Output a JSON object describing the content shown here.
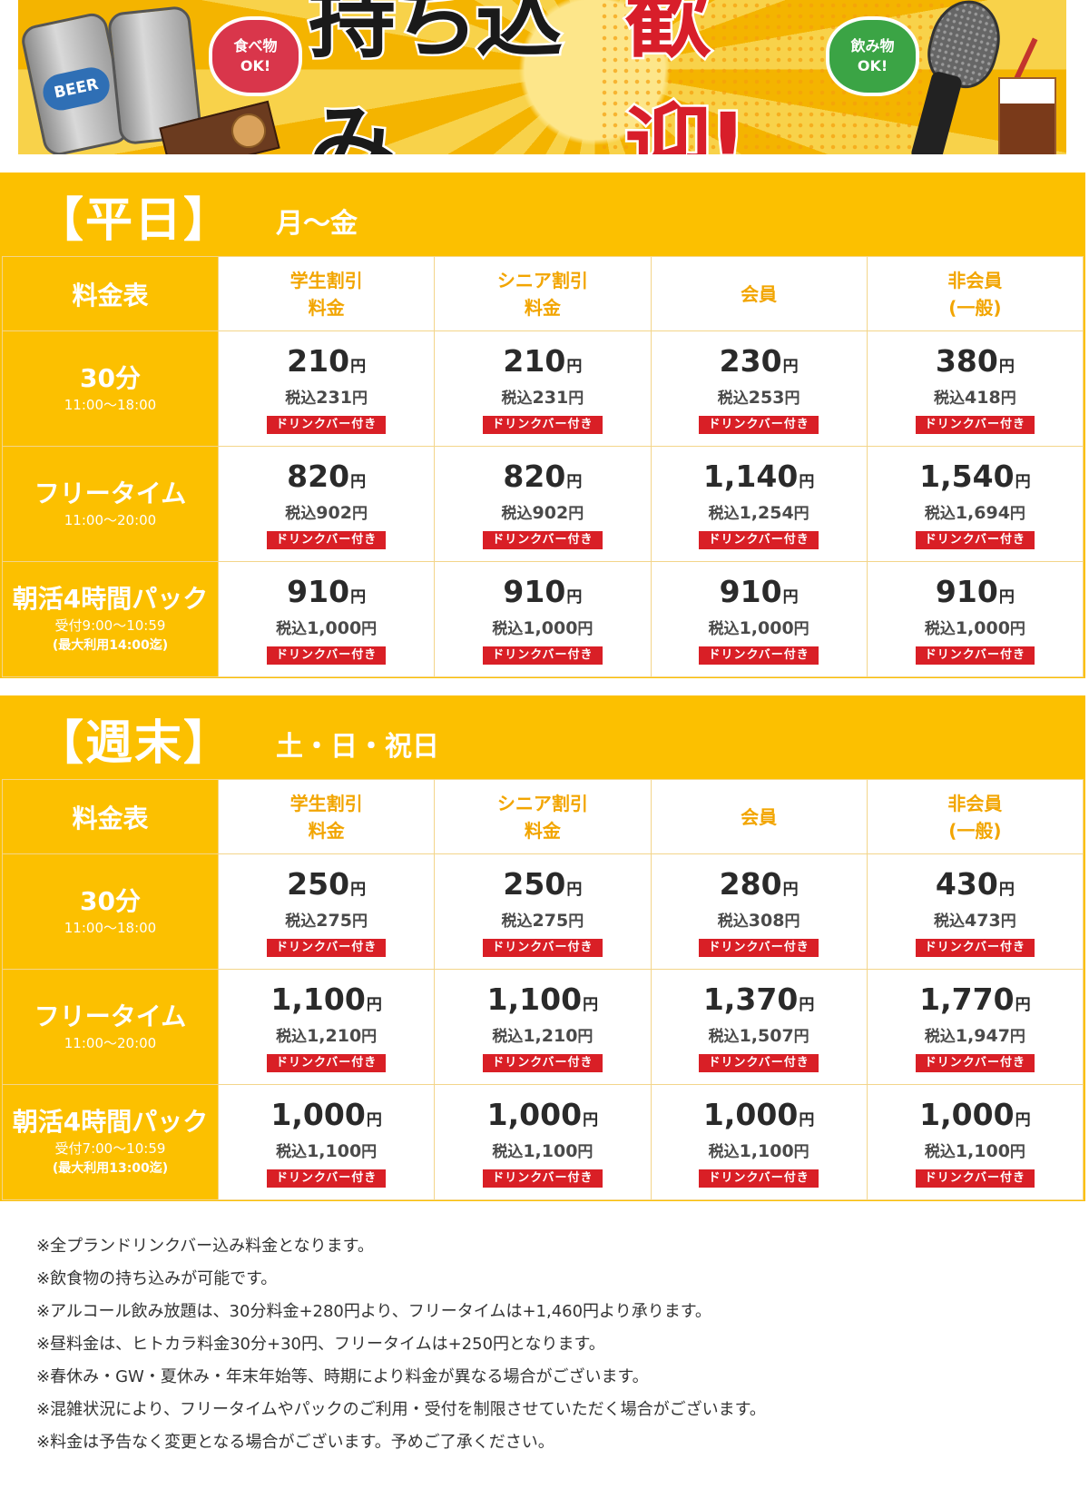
{
  "banner": {
    "headline_black": "持ち込み",
    "headline_red": "歓迎!",
    "food_bubble": [
      "食べ物",
      "OK!"
    ],
    "drink_bubble": [
      "飲み物",
      "OK!"
    ],
    "can_label": "BEER",
    "colors": {
      "background": "#f3c21a",
      "headline_red": "#d81e2a",
      "food_bubble": "#d9364b",
      "drink_bubble": "#3ba445"
    }
  },
  "weekday": {
    "title": "【平日】",
    "subtitle": "月〜金",
    "corner_label": "料金表",
    "columns": [
      {
        "line1": "学生割引",
        "line2": "料金"
      },
      {
        "line1": "シニア割引",
        "line2": "料金"
      },
      {
        "line1": "会員",
        "line2": ""
      },
      {
        "line1": "非会員",
        "line2": "(一般)"
      }
    ],
    "rows": [
      {
        "label": "30分",
        "sub": "11:00〜18:00",
        "sub2": "",
        "cells": [
          {
            "amount": "210",
            "tax": "231"
          },
          {
            "amount": "210",
            "tax": "231"
          },
          {
            "amount": "230",
            "tax": "253"
          },
          {
            "amount": "380",
            "tax": "418"
          }
        ]
      },
      {
        "label": "フリータイム",
        "sub": "11:00〜20:00",
        "sub2": "",
        "cells": [
          {
            "amount": "820",
            "tax": "902"
          },
          {
            "amount": "820",
            "tax": "902"
          },
          {
            "amount": "1,140",
            "tax": "1,254"
          },
          {
            "amount": "1,540",
            "tax": "1,694"
          }
        ]
      },
      {
        "label": "朝活4時間パック",
        "sub": "受付9:00〜10:59",
        "sub2": "(最大利用14:00迄)",
        "cells": [
          {
            "amount": "910",
            "tax": "1,000"
          },
          {
            "amount": "910",
            "tax": "1,000"
          },
          {
            "amount": "910",
            "tax": "1,000"
          },
          {
            "amount": "910",
            "tax": "1,000"
          }
        ]
      }
    ]
  },
  "weekend": {
    "title": "【週末】",
    "subtitle": "土・日・祝日",
    "corner_label": "料金表",
    "columns": [
      {
        "line1": "学生割引",
        "line2": "料金"
      },
      {
        "line1": "シニア割引",
        "line2": "料金"
      },
      {
        "line1": "会員",
        "line2": ""
      },
      {
        "line1": "非会員",
        "line2": "(一般)"
      }
    ],
    "rows": [
      {
        "label": "30分",
        "sub": "11:00〜18:00",
        "sub2": "",
        "cells": [
          {
            "amount": "250",
            "tax": "275"
          },
          {
            "amount": "250",
            "tax": "275"
          },
          {
            "amount": "280",
            "tax": "308"
          },
          {
            "amount": "430",
            "tax": "473"
          }
        ]
      },
      {
        "label": "フリータイム",
        "sub": "11:00〜20:00",
        "sub2": "",
        "cells": [
          {
            "amount": "1,100",
            "tax": "1,210"
          },
          {
            "amount": "1,100",
            "tax": "1,210"
          },
          {
            "amount": "1,370",
            "tax": "1,507"
          },
          {
            "amount": "1,770",
            "tax": "1,947"
          }
        ]
      },
      {
        "label": "朝活4時間パック",
        "sub": "受付7:00〜10:59",
        "sub2": "(最大利用13:00迄)",
        "cells": [
          {
            "amount": "1,000",
            "tax": "1,100"
          },
          {
            "amount": "1,000",
            "tax": "1,100"
          },
          {
            "amount": "1,000",
            "tax": "1,100"
          },
          {
            "amount": "1,000",
            "tax": "1,100"
          }
        ]
      }
    ]
  },
  "labels": {
    "yen": "円",
    "tax_prefix": "税込",
    "drink_badge": "ドリンクバー付き"
  },
  "colors": {
    "accent_yellow": "#fcc000",
    "header_text": "#f2a500",
    "badge_red": "#d91f26"
  },
  "notes": [
    "※全プランドリンクバー込み料金となります。",
    "※飲食物の持ち込みが可能です。",
    "※アルコール飲み放題は、30分料金+280円より、フリータイムは+1,460円より承ります。",
    "※昼料金は、ヒトカラ料金30分+30円、フリータイムは+250円となります。",
    "※春休み・GW・夏休み・年末年始等、時期により料金が異なる場合がございます。",
    "※混雑状況により、フリータイムやパックのご利用・受付を制限させていただく場合がございます。",
    "※料金は予告なく変更となる場合がございます。予めご了承ください。"
  ]
}
